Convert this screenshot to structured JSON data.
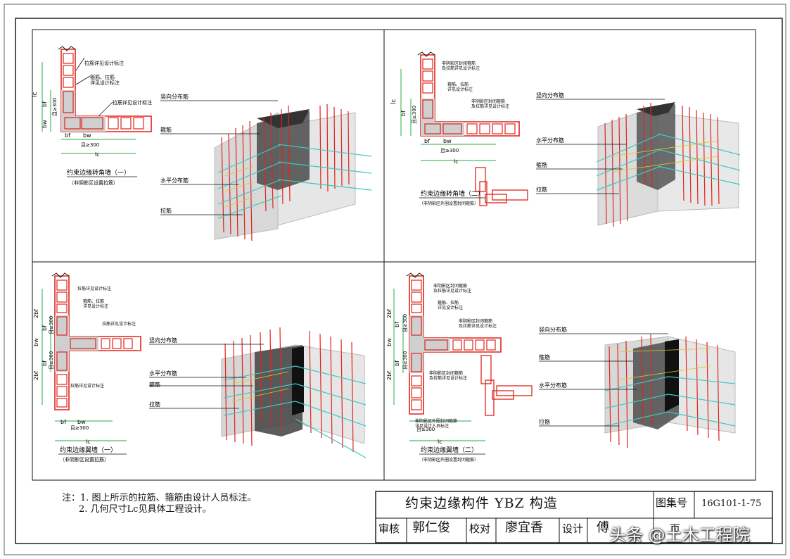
{
  "panels": {
    "tl": {
      "title": "约束边缘转角墙（一）",
      "subtitle": "（非阴影区设置拉筋）",
      "notes": [
        "拉筋详见设计标注",
        "箍筋、拉筋\n详见设计标注",
        "拉筋详见设计标注"
      ],
      "dims": [
        "lc",
        "bf",
        "bw",
        "且≥300",
        "bf",
        "bw",
        "且≥300",
        "lc"
      ],
      "callouts": [
        "竖向分布筋",
        "箍筋",
        "水平分布筋",
        "拉筋"
      ]
    },
    "tr": {
      "title": "约束边缘转角墙（二）",
      "subtitle": "（非阴影区外圈设置封闭箍筋）",
      "notes": [
        "非阴影区封闭箍筋\n及拉筋详见设计标注",
        "箍筋、拉筋\n详见设计标注",
        "非阴影区封闭箍筋\n及拉筋详见设计标注"
      ],
      "dims": [
        "lc",
        "bf",
        "且≥300",
        "bf",
        "bw",
        "且≥300",
        "lc"
      ],
      "callouts": [
        "竖向分布筋",
        "水平分布筋",
        "箍筋",
        "拉筋"
      ]
    },
    "bl": {
      "title": "约束边缘翼墙（一）",
      "subtitle": "（非阴影区设置拉筋）",
      "notes": [
        "拉筋详见设计标注",
        "箍筋、拉筋\n详见设计标注",
        "拉筋详见设计标注",
        "拉筋详见设计标注"
      ],
      "dims": [
        "2bf",
        "bf",
        "且≥300",
        "bw",
        "bf",
        "且≥300",
        "2bf",
        "bf",
        "bw",
        "且≥300",
        "lc"
      ],
      "callouts": [
        "竖向分布筋",
        "水平分布筋",
        "箍筋",
        "拉筋"
      ]
    },
    "br": {
      "title": "约束边缘翼墙（二）",
      "subtitle": "（非阴影区外圈设置封闭箍筋）",
      "notes": [
        "非阴影区封闭箍筋\n及拉筋详见设计标注",
        "箍筋、拉筋\n详见设计标注",
        "非阴影区封闭箍筋\n及拉筋详见设计标注",
        "非阴影区封闭箍筋\n及拉筋详见设计标注",
        "非阴影区外圈封闭箍筋\n详见设计人员标注"
      ],
      "dims": [
        "2bf",
        "bf",
        "且≥300",
        "bw",
        "bf",
        "且≥300",
        "2bf",
        "且≥300",
        "lc"
      ],
      "callouts": [
        "竖向分布筋",
        "箍筋",
        "水平分布筋",
        "拉筋"
      ]
    }
  },
  "notes": {
    "line1": "注：1. 图上所示的拉筋、箍筋由设计人员标注。",
    "line2": "2. 几何尺寸Lc见具体工程设计。"
  },
  "title_block": {
    "title": "约束边缘构件 YBZ 构造",
    "atlas_label": "图集号",
    "atlas_no": "16G101-1-75",
    "review_label": "审核",
    "review_name": "郭仁俊",
    "check_label": "校对",
    "check_name": "廖宜香",
    "design_label": "设计",
    "design_name": "傅",
    "page_label": "页"
  },
  "watermark": "头条 @土木工程院",
  "colors": {
    "rebar_red": "#e0241d",
    "rebar_cyan": "#3fc8c0",
    "rebar_yellow": "#d8c62a",
    "shade": "#c8c8c8",
    "dark": "#3a3a3a",
    "dim_green": "#2aa84a"
  }
}
